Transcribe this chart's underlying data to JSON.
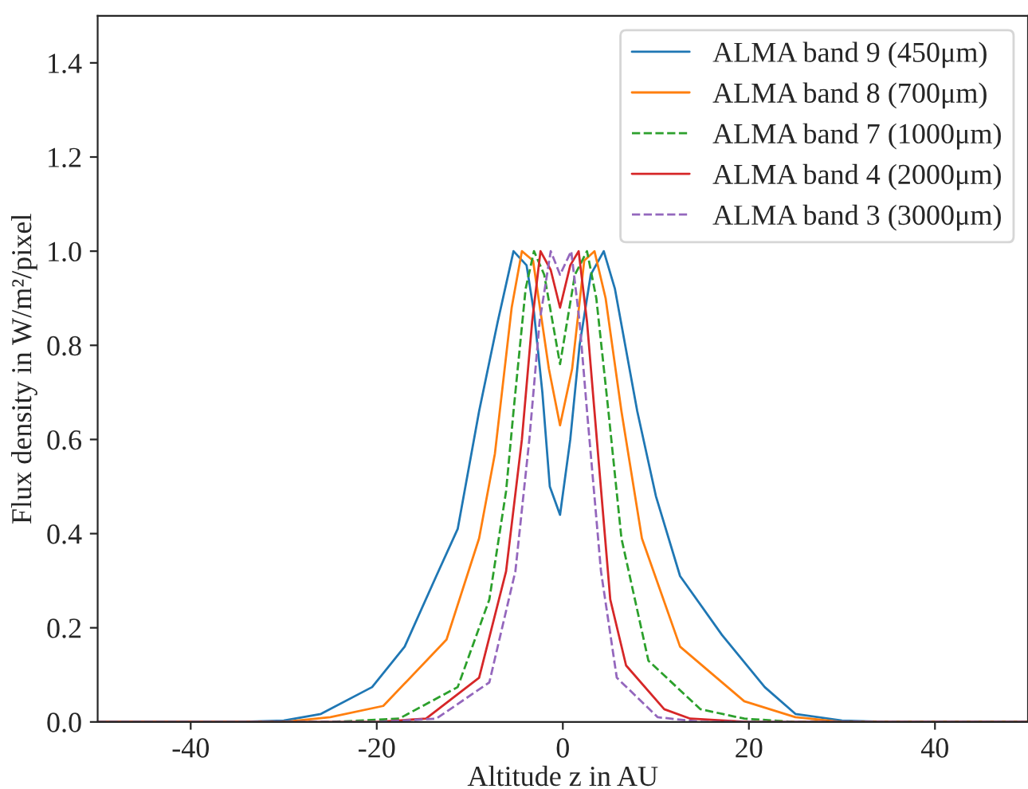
{
  "chart_data": {
    "type": "line",
    "xlabel": "Altitude z in AU",
    "ylabel": "Flux density in W/m²/pixel",
    "xlim": [
      -50,
      50
    ],
    "ylim": [
      0,
      1.5
    ],
    "xticks": [
      -40,
      -20,
      0,
      20,
      40
    ],
    "yticks": [
      {
        "value": 0,
        "label": "0.0"
      },
      {
        "value": 0.2,
        "label": "0.2"
      },
      {
        "value": 0.4,
        "label": "0.4"
      },
      {
        "value": 0.6,
        "label": "0.6"
      },
      {
        "value": 0.8,
        "label": "0.8"
      },
      {
        "value": 1.0,
        "label": "1.0"
      },
      {
        "value": 1.2,
        "label": "1.2"
      },
      {
        "value": 1.4,
        "label": "1.4"
      }
    ],
    "grid": false,
    "legend": "top right",
    "series": [
      {
        "name": "ALMA band 9 (450μm)",
        "color": "#1f77b4",
        "line_style": "solid",
        "x": [
          -50,
          -35,
          -30,
          -26,
          -20.5,
          -17,
          -13.6,
          -11.3,
          -9,
          -7,
          -5.3,
          -3.9,
          -3.1,
          -2.2,
          -1.4,
          -0.3,
          0.8,
          1.8,
          3,
          4.4,
          5.6,
          8,
          10,
          12.6,
          17.1,
          21.7,
          25,
          30,
          35,
          50
        ],
        "values": [
          0,
          0,
          0.003,
          0.017,
          0.074,
          0.16,
          0.31,
          0.41,
          0.66,
          0.85,
          1.0,
          0.97,
          0.87,
          0.7,
          0.5,
          0.44,
          0.6,
          0.8,
          0.95,
          1.0,
          0.92,
          0.66,
          0.48,
          0.31,
          0.185,
          0.074,
          0.017,
          0.003,
          0,
          0
        ]
      },
      {
        "name": "ALMA band 8 (700μm)",
        "color": "#ff7f0e",
        "line_style": "solid",
        "x": [
          -50,
          -30,
          -25,
          -19.3,
          -12.5,
          -9,
          -7.3,
          -5.5,
          -4.4,
          -3.2,
          -1.5,
          -0.3,
          1,
          2.3,
          3.4,
          4.6,
          6.3,
          8.5,
          12.6,
          19.5,
          25,
          30,
          50
        ],
        "values": [
          0,
          0,
          0.01,
          0.034,
          0.175,
          0.39,
          0.57,
          0.88,
          1.0,
          0.98,
          0.75,
          0.63,
          0.75,
          0.98,
          1.0,
          0.9,
          0.66,
          0.39,
          0.16,
          0.044,
          0.01,
          0,
          0
        ]
      },
      {
        "name": "ALMA band 7 (1000μm)",
        "color": "#2ca02c",
        "line_style": "dashed",
        "x": [
          -50,
          -25,
          -17.6,
          -11.3,
          -7.9,
          -6.1,
          -5.3,
          -4,
          -3.1,
          -2,
          -0.3,
          1.3,
          2.6,
          3.6,
          4.9,
          6.3,
          9.2,
          14.8,
          19.5,
          25,
          50
        ],
        "values": [
          0,
          0,
          0.007,
          0.074,
          0.26,
          0.49,
          0.66,
          0.92,
          1.0,
          0.95,
          0.76,
          0.95,
          1.0,
          0.9,
          0.66,
          0.39,
          0.13,
          0.027,
          0.007,
          0,
          0
        ]
      },
      {
        "name": "ALMA band 4 (2000μm)",
        "color": "#d62728",
        "line_style": "solid",
        "x": [
          -50,
          -20,
          -14.7,
          -9,
          -6.1,
          -4.4,
          -3.3,
          -2.4,
          -1.3,
          -0.3,
          0.8,
          1.7,
          2.6,
          3.4,
          5.1,
          6.8,
          10.9,
          13.7,
          20,
          50
        ],
        "values": [
          0,
          0,
          0.007,
          0.094,
          0.32,
          0.6,
          0.85,
          1.0,
          0.96,
          0.88,
          0.97,
          1.0,
          0.85,
          0.66,
          0.26,
          0.12,
          0.027,
          0.007,
          0,
          0
        ]
      },
      {
        "name": "ALMA band 3 (3000μm)",
        "color": "#9467bd",
        "line_style": "dashed",
        "x": [
          -50,
          -20,
          -13.6,
          -7.9,
          -5.1,
          -3.6,
          -2.5,
          -1.3,
          -0.3,
          0.9,
          1.8,
          2.6,
          4.1,
          5.8,
          10.2,
          15,
          50
        ],
        "values": [
          0,
          0,
          0.007,
          0.084,
          0.32,
          0.6,
          0.85,
          1.0,
          0.95,
          1.0,
          0.85,
          0.66,
          0.32,
          0.094,
          0.01,
          0,
          0
        ]
      }
    ]
  }
}
